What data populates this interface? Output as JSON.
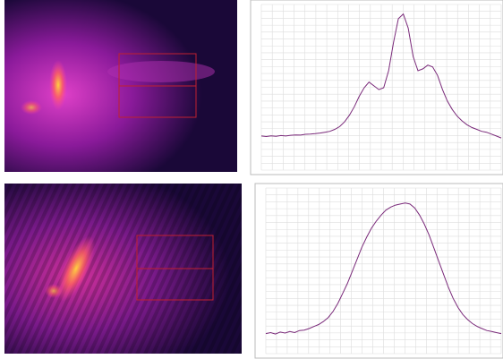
{
  "chart_data": [
    {
      "type": "line",
      "color": "#7a2a7a",
      "grid": true,
      "x": [
        0,
        1,
        2,
        3,
        4,
        5,
        6,
        7,
        8,
        9,
        10,
        11,
        12,
        13,
        14,
        15,
        16,
        17,
        18,
        19,
        20,
        21,
        22,
        23,
        24,
        25,
        26,
        27,
        28,
        29,
        30,
        31,
        32,
        33,
        34,
        35,
        36,
        37,
        38,
        39,
        40,
        41,
        42,
        43,
        44,
        45,
        46,
        47,
        48,
        49
      ],
      "values": [
        10,
        5,
        12,
        8,
        15,
        10,
        18,
        22,
        20,
        28,
        30,
        35,
        42,
        50,
        60,
        80,
        110,
        160,
        230,
        320,
        430,
        520,
        580,
        540,
        500,
        520,
        700,
        1000,
        1250,
        1300,
        1150,
        850,
        700,
        720,
        760,
        740,
        650,
        500,
        380,
        290,
        220,
        170,
        130,
        100,
        80,
        60,
        50,
        30,
        10,
        -10
      ],
      "xlim": [
        0,
        49
      ],
      "ylim": [
        -350,
        1400
      ]
    },
    {
      "type": "line",
      "color": "#7a2a7a",
      "grid": true,
      "x": [
        0,
        1,
        2,
        3,
        4,
        5,
        6,
        7,
        8,
        9,
        10,
        11,
        12,
        13,
        14,
        15,
        16,
        17,
        18,
        19,
        20,
        21,
        22,
        23,
        24,
        25,
        26,
        27,
        28,
        29,
        30,
        31,
        32,
        33,
        34,
        35,
        36,
        37,
        38,
        39,
        40,
        41,
        42,
        43,
        44,
        45,
        46,
        47,
        48,
        49
      ],
      "values": [
        0,
        10,
        -5,
        15,
        5,
        20,
        10,
        30,
        35,
        50,
        70,
        90,
        120,
        160,
        220,
        300,
        400,
        500,
        620,
        740,
        860,
        960,
        1050,
        1120,
        1180,
        1230,
        1260,
        1280,
        1290,
        1300,
        1290,
        1250,
        1180,
        1090,
        980,
        850,
        720,
        590,
        460,
        350,
        260,
        190,
        140,
        100,
        70,
        50,
        30,
        20,
        10,
        0
      ],
      "xlim": [
        0,
        49
      ],
      "ylim": [
        -200,
        1450
      ]
    }
  ]
}
